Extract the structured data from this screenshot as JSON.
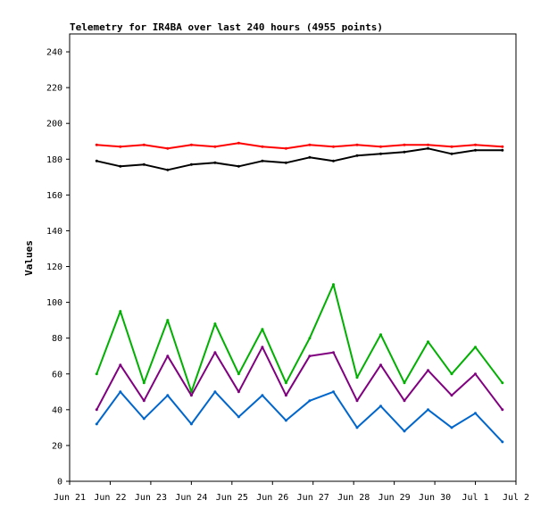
{
  "chart_data": {
    "type": "line",
    "title": "Telemetry for IR4BA over last 240 hours (4955 points)",
    "ylabel": "Values",
    "xlabel": "",
    "ylim": [
      0,
      250
    ],
    "y_ticks": [
      0,
      20,
      40,
      60,
      80,
      100,
      120,
      140,
      160,
      180,
      200,
      220,
      240
    ],
    "x_ticks": [
      "Jun 21",
      "Jun 22",
      "Jun 23",
      "Jun 24",
      "Jun 25",
      "Jun 26",
      "Jun 27",
      "Jun 28",
      "Jun 29",
      "Jun 30",
      "Jul 1",
      "Jul 2"
    ],
    "xlim": [
      "Jun 21",
      "Jul 2"
    ],
    "grid": false,
    "legend": "none",
    "series": [
      {
        "color": "#ff0000",
        "x": [
          "Jun 21 16:00",
          "Jun 22 06:00",
          "Jun 22 20:00",
          "Jun 23 10:00",
          "Jun 24 00:00",
          "Jun 24 14:00",
          "Jun 25 04:00",
          "Jun 25 18:00",
          "Jun 26 08:00",
          "Jun 26 22:00",
          "Jun 27 12:00",
          "Jun 28 02:00",
          "Jun 28 16:00",
          "Jun 29 06:00",
          "Jun 29 20:00",
          "Jun 30 10:00",
          "Jul 1 00:00",
          "Jul 1 16:00"
        ],
        "values": [
          188,
          187,
          188,
          186,
          188,
          187,
          189,
          187,
          186,
          188,
          187,
          188,
          187,
          188,
          188,
          187,
          188,
          187
        ]
      },
      {
        "color": "#000000",
        "x": [
          "Jun 21 16:00",
          "Jun 22 06:00",
          "Jun 22 20:00",
          "Jun 23 10:00",
          "Jun 24 00:00",
          "Jun 24 14:00",
          "Jun 25 04:00",
          "Jun 25 18:00",
          "Jun 26 08:00",
          "Jun 26 22:00",
          "Jun 27 12:00",
          "Jun 28 02:00",
          "Jun 28 16:00",
          "Jun 29 06:00",
          "Jun 29 20:00",
          "Jun 30 10:00",
          "Jul 1 00:00",
          "Jul 1 16:00"
        ],
        "values": [
          179,
          176,
          177,
          174,
          177,
          178,
          176,
          179,
          178,
          181,
          179,
          182,
          183,
          184,
          186,
          183,
          185,
          185
        ]
      },
      {
        "color": "#00b000",
        "x": [
          "Jun 21 16:00",
          "Jun 22 06:00",
          "Jun 22 20:00",
          "Jun 23 10:00",
          "Jun 24 00:00",
          "Jun 24 14:00",
          "Jun 25 04:00",
          "Jun 25 18:00",
          "Jun 26 08:00",
          "Jun 26 22:00",
          "Jun 27 12:00",
          "Jun 28 02:00",
          "Jun 28 16:00",
          "Jun 29 06:00",
          "Jun 29 20:00",
          "Jun 30 10:00",
          "Jul 1 00:00",
          "Jul 1 16:00"
        ],
        "values": [
          60,
          95,
          55,
          90,
          50,
          88,
          60,
          85,
          55,
          80,
          110,
          58,
          82,
          55,
          78,
          60,
          75,
          55
        ]
      },
      {
        "color": "#800080",
        "x": [
          "Jun 21 16:00",
          "Jun 22 06:00",
          "Jun 22 20:00",
          "Jun 23 10:00",
          "Jun 24 00:00",
          "Jun 24 14:00",
          "Jun 25 04:00",
          "Jun 25 18:00",
          "Jun 26 08:00",
          "Jun 26 22:00",
          "Jun 27 12:00",
          "Jun 28 02:00",
          "Jun 28 16:00",
          "Jun 29 06:00",
          "Jun 29 20:00",
          "Jun 30 10:00",
          "Jul 1 00:00",
          "Jul 1 16:00"
        ],
        "values": [
          40,
          65,
          45,
          70,
          48,
          72,
          50,
          75,
          48,
          70,
          72,
          45,
          65,
          45,
          62,
          48,
          60,
          40
        ]
      },
      {
        "color": "#0066cc",
        "x": [
          "Jun 21 16:00",
          "Jun 22 06:00",
          "Jun 22 20:00",
          "Jun 23 10:00",
          "Jun 24 00:00",
          "Jun 24 14:00",
          "Jun 25 04:00",
          "Jun 25 18:00",
          "Jun 26 08:00",
          "Jun 26 22:00",
          "Jun 27 12:00",
          "Jun 28 02:00",
          "Jun 28 16:00",
          "Jun 29 06:00",
          "Jun 29 20:00",
          "Jun 30 10:00",
          "Jul 1 00:00",
          "Jul 1 16:00"
        ],
        "values": [
          32,
          50,
          35,
          48,
          32,
          50,
          36,
          48,
          34,
          45,
          50,
          30,
          42,
          28,
          40,
          30,
          38,
          22
        ]
      }
    ]
  }
}
